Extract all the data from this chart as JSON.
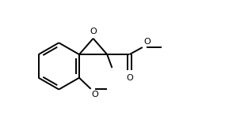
{
  "bg_color": "#ffffff",
  "line_color": "#000000",
  "lw": 1.4,
  "figsize": [
    2.84,
    1.65
  ],
  "dpi": 100,
  "xlim": [
    0,
    10
  ],
  "ylim": [
    0,
    5.8
  ]
}
